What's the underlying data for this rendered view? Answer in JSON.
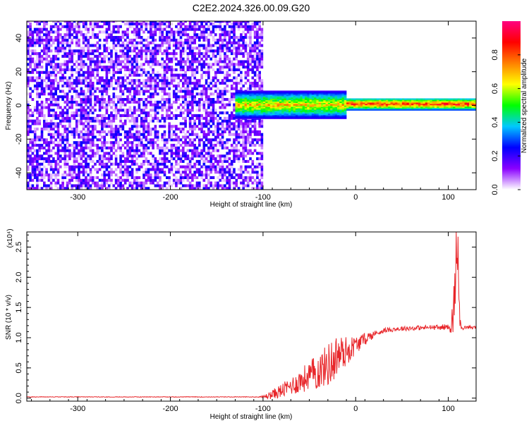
{
  "title": "C2E2.2024.326.00.09.G20",
  "chart_data": [
    {
      "type": "heatmap",
      "xlabel": "Height of straight line (km)",
      "ylabel": "Frequency (Hz)",
      "xlim": [
        -355,
        130
      ],
      "ylim": [
        -50,
        50
      ],
      "x_ticks": [
        -300,
        -200,
        -100,
        0,
        100
      ],
      "x_tick_labels": [
        "-300",
        "-200",
        "-100",
        "0",
        "100"
      ],
      "y_ticks": [
        -40,
        -20,
        0,
        20,
        40
      ],
      "y_tick_labels": [
        "-40",
        "-20",
        "0",
        "20",
        "40"
      ],
      "colorbar": {
        "label": "Normalized spectral amplitude",
        "range": [
          0,
          1
        ],
        "ticks": [
          0,
          0.2,
          0.4,
          0.6,
          0.8
        ],
        "tick_labels": [
          "0.0",
          "0.2",
          "0.4",
          "0.6",
          "0.8"
        ],
        "colormap": [
          "#ffffff",
          "#8a00ff",
          "#0000ff",
          "#00c8ff",
          "#00ff00",
          "#ffff00",
          "#ff8000",
          "#ff0000",
          "#ff0080"
        ]
      },
      "regions": [
        {
          "x_range": [
            -355,
            -100
          ],
          "freq_range": [
            -50,
            50
          ],
          "amplitude": [
            0.02,
            0.25
          ]
        },
        {
          "x_range": [
            -130,
            -10
          ],
          "freq_range": [
            -8,
            8
          ],
          "amplitude": [
            0.2,
            0.8
          ]
        },
        {
          "x_range": [
            -10,
            130
          ],
          "freq_range": [
            -3,
            4
          ],
          "amplitude": [
            0.3,
            1.0
          ]
        }
      ]
    },
    {
      "type": "line",
      "xlabel": "Height of straight line (km)",
      "ylabel": "SNR (10 * v/v)",
      "y_scale_label": "(x10⁴)",
      "xlim": [
        -355,
        130
      ],
      "ylim": [
        -0.05,
        2.75
      ],
      "x_ticks": [
        -300,
        -200,
        -100,
        0,
        100
      ],
      "x_tick_labels": [
        "-300",
        "-200",
        "-100",
        "0",
        "100"
      ],
      "y_ticks": [
        0,
        0.5,
        1.0,
        1.5,
        2.0,
        2.5
      ],
      "y_tick_labels": [
        "0.0",
        "0.5",
        "1.0",
        "1.5",
        "2.0",
        "2.5"
      ],
      "series": [
        {
          "color": "#e8262a",
          "x": [
            -355,
            -300,
            -250,
            -200,
            -150,
            -110,
            -100,
            -90,
            -80,
            -70,
            -60,
            -50,
            -40,
            -30,
            -25,
            -20,
            -10,
            0,
            10,
            20,
            30,
            40,
            50,
            60,
            70,
            80,
            90,
            100,
            105,
            108,
            110,
            112,
            115,
            120,
            130
          ],
          "y": [
            0.02,
            0.02,
            0.02,
            0.02,
            0.02,
            0.02,
            0.02,
            0.06,
            0.12,
            0.2,
            0.28,
            0.37,
            0.45,
            0.55,
            0.62,
            0.7,
            0.78,
            0.88,
            0.98,
            1.06,
            1.12,
            1.14,
            1.15,
            1.16,
            1.16,
            1.17,
            1.17,
            1.18,
            1.3,
            2.1,
            2.72,
            1.3,
            1.17,
            1.17,
            1.17
          ],
          "noise": [
            0,
            0,
            0,
            0,
            0,
            0,
            0.02,
            0.08,
            0.12,
            0.15,
            0.2,
            0.25,
            0.3,
            0.35,
            0.4,
            0.35,
            0.25,
            0.15,
            0.1,
            0.06,
            0.04,
            0.04,
            0.04,
            0.04,
            0.04,
            0.04,
            0.04,
            0.05,
            0.3,
            0.6,
            0.6,
            0.3,
            0.04,
            0.03,
            0.03
          ]
        }
      ]
    }
  ]
}
